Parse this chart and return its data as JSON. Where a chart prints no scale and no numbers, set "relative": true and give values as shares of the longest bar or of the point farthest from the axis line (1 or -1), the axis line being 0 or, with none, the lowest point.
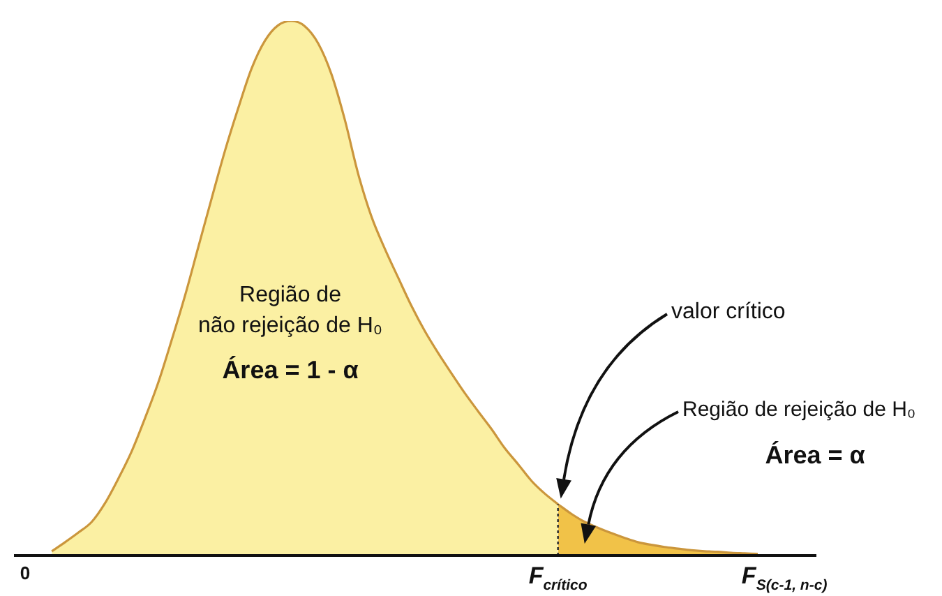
{
  "chart_data": {
    "type": "area",
    "relative": true,
    "tick_labels": "x",
    "categories": [
      "0",
      null,
      null,
      null,
      null,
      null,
      null,
      null,
      null,
      null,
      null,
      null,
      null,
      null,
      null,
      null,
      null,
      null,
      null,
      null,
      null,
      null,
      null,
      null,
      null,
      null,
      null,
      null,
      null,
      null,
      null,
      null,
      null,
      null,
      null,
      null,
      null,
      null,
      null,
      null,
      "F$_{crítico}$",
      null,
      null,
      null,
      null,
      null,
      null,
      null,
      null,
      null,
      null,
      null,
      null,
      null,
      null,
      null,
      null,
      "F$_{S(c-1, n-c)}$"
    ],
    "series": [
      {
        "color": "#fbf0a3",
        "values": [
          null,
          null,
          0.008,
          0.025,
          0.043,
          0.063,
          0.098,
          0.144,
          0.195,
          0.257,
          0.324,
          0.403,
          0.486,
          0.577,
          0.668,
          0.757,
          0.837,
          0.911,
          0.963,
          0.992,
          1.0,
          0.99,
          0.958,
          0.9,
          0.815,
          0.714,
          0.634,
          0.574,
          0.52,
          0.467,
          0.42,
          0.379,
          0.341,
          0.304,
          0.27,
          0.237,
          0.201,
          0.171,
          0.14,
          0.116,
          0.096,
          null,
          null,
          null,
          null,
          null,
          null,
          null,
          null,
          null,
          null,
          null,
          null,
          null,
          null,
          null,
          null,
          null
        ]
      },
      {
        "color": "#f1c248",
        "values": [
          null,
          null,
          null,
          null,
          null,
          null,
          null,
          null,
          null,
          null,
          null,
          null,
          null,
          null,
          null,
          null,
          null,
          null,
          null,
          null,
          null,
          null,
          null,
          null,
          null,
          null,
          null,
          null,
          null,
          null,
          null,
          null,
          null,
          null,
          null,
          null,
          null,
          null,
          null,
          null,
          0.096,
          0.078,
          0.063,
          0.052,
          0.042,
          0.033,
          0.025,
          0.02,
          0.016,
          0.013,
          0.01,
          0.008,
          0.007,
          0.005,
          0.004,
          0.003,
          null,
          null
        ]
      }
    ],
    "ref_lines": [
      {
        "axis": "x",
        "value": "F$_{crítico}$",
        "color": "#333333",
        "line_style": "dotted"
      }
    ],
    "annotations": [
      "Região de",
      "não rejeição de H₀",
      "Área = 1 - α",
      "valor crítico",
      "Região de rejeição de H₀",
      "Área = α"
    ]
  }
}
